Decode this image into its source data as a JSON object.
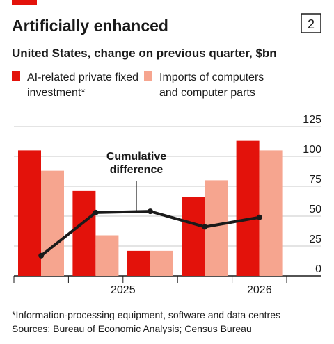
{
  "chart_data": {
    "type": "bar",
    "title": "Artificially enhanced",
    "chart_number": "2",
    "subtitle": "United States, change on previous quarter, $bn",
    "categories": [
      null,
      null,
      null,
      null,
      null
    ],
    "year_labels": [
      {
        "label": "2025",
        "span": [
          0,
          3
        ]
      },
      {
        "label": "2026",
        "span": [
          4,
          4
        ]
      }
    ],
    "series": [
      {
        "name": "AI-related private fixed investment*",
        "color": "#e3120b",
        "values": [
          105,
          71,
          21,
          66,
          113
        ]
      },
      {
        "name": "Imports of computers and computer parts",
        "color": "#f6a58f",
        "values": [
          88,
          34,
          21,
          80,
          105
        ]
      },
      {
        "name": "Cumulative difference",
        "type": "line",
        "color": "#1a1a1a",
        "values": [
          17,
          53,
          54,
          41,
          49
        ]
      }
    ],
    "annotation": "Cumulative difference",
    "ylim": [
      0,
      125
    ],
    "yticks": [
      0,
      25,
      50,
      75,
      100,
      125
    ],
    "grid": true,
    "footnote": "*Information-processing equipment, software and data centres",
    "source": "Sources: Bureau of Economic Analysis; Census Bureau"
  }
}
